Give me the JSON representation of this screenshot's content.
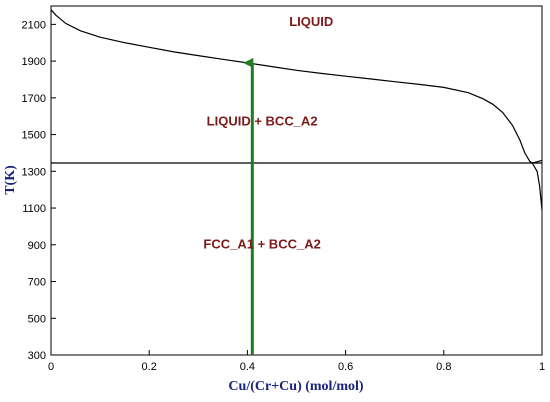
{
  "chart_data": {
    "type": "line",
    "title": "",
    "xlabel": "Cu/(Cr+Cu) (mol/mol)",
    "ylabel": "T(K)",
    "xlim": [
      0,
      1
    ],
    "ylim": [
      300,
      2200
    ],
    "x_ticks": [
      0,
      0.2,
      0.4,
      0.6,
      0.8,
      1
    ],
    "x_tick_labels": [
      "0",
      "0.2",
      "0.4",
      "0.6",
      "0.8",
      "1"
    ],
    "y_ticks": [
      300,
      500,
      700,
      900,
      1100,
      1300,
      1500,
      1700,
      1900,
      2100
    ],
    "y_tick_labels": [
      "300",
      "500",
      "700",
      "900",
      "1100",
      "1300",
      "1500",
      "1700",
      "1900",
      "2100"
    ],
    "grid": false,
    "colors": {
      "axis_title": "#1a237e",
      "region_label": "#7b1a1a",
      "arrow": "#1e7d1e",
      "line": "#000000"
    },
    "series": [
      {
        "x": [
          0,
          0.01,
          0.03,
          0.06,
          0.1,
          0.15,
          0.2,
          0.25,
          0.3,
          0.35,
          0.4,
          0.45,
          0.5,
          0.55,
          0.6,
          0.65,
          0.7,
          0.75,
          0.8,
          0.85,
          0.88,
          0.9,
          0.92,
          0.94,
          0.955,
          0.965,
          0.975,
          0.98
        ],
        "y": [
          2180,
          2150,
          2105,
          2065,
          2030,
          2000,
          1975,
          1950,
          1930,
          1910,
          1890,
          1870,
          1850,
          1833,
          1818,
          1803,
          1788,
          1773,
          1757,
          1728,
          1695,
          1665,
          1620,
          1550,
          1470,
          1400,
          1355,
          1345
        ]
      },
      {
        "x": [
          0,
          0.98,
          1
        ],
        "y": [
          1345,
          1345,
          1345
        ]
      },
      {
        "x": [
          0.98,
          0.99,
          0.995,
          1
        ],
        "y": [
          1345,
          1300,
          1225,
          1090
        ]
      },
      {
        "x": [
          0.98,
          0.99,
          1
        ],
        "y": [
          1345,
          1352,
          1360
        ]
      }
    ],
    "annotations": [
      {
        "text": "LIQUID",
        "x": 0.53,
        "y": 2090
      },
      {
        "text": "LIQUID + BCC_A2",
        "x": 0.43,
        "y": 1550
      },
      {
        "text": "FCC_A1 + BCC_A2",
        "x": 0.43,
        "y": 880
      }
    ],
    "arrow": {
      "x": 0.41,
      "y_start": 300,
      "y_end": 1890
    }
  }
}
